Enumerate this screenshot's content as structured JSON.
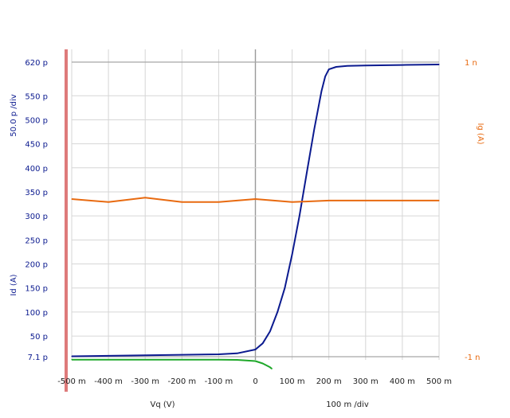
{
  "chart_data": {
    "type": "line",
    "xlabel": "Vq (V)",
    "x_per_div": "100 m /div",
    "ylabel_left": "Id (A)",
    "y_per_div_left": "50.0 p /div",
    "ylabel_right": "Ig (A)",
    "xlim": [
      -0.5,
      0.5
    ],
    "ylim_left": [
      7.1e-12,
      6.2e-10
    ],
    "ylim_right": [
      -1e-09,
      1e-09
    ],
    "x_tick_labels": [
      "-500 m",
      "-400 m",
      "-300 m",
      "-200 m",
      "-100 m",
      "0",
      "100 m",
      "200 m",
      "300 m",
      "400 m",
      "500 m"
    ],
    "x_tick_values": [
      -0.5,
      -0.4,
      -0.3,
      -0.2,
      -0.1,
      0,
      0.1,
      0.2,
      0.3,
      0.4,
      0.5
    ],
    "y_left_tick_labels": [
      "620 p",
      "550 p",
      "500 p",
      "450 p",
      "400 p",
      "350 p",
      "300 p",
      "250 p",
      "200 p",
      "150 p",
      "100 p",
      "50 p",
      "7.1 p"
    ],
    "y_left_tick_values": [
      620,
      550,
      500,
      450,
      400,
      350,
      300,
      250,
      200,
      150,
      100,
      50,
      7.1
    ],
    "y_right_tick_labels": [
      "1 n",
      "-1 n"
    ],
    "y_right_tick_values": [
      1,
      -1
    ],
    "grid": true,
    "series": [
      {
        "axis": "left",
        "color": "#0b1a8f",
        "x": [
          -0.5,
          -0.4,
          -0.3,
          -0.2,
          -0.1,
          -0.05,
          0,
          0.02,
          0.04,
          0.06,
          0.08,
          0.1,
          0.12,
          0.14,
          0.16,
          0.18,
          0.19,
          0.2,
          0.22,
          0.25,
          0.3,
          0.4,
          0.5
        ],
        "y": [
          8,
          9,
          10,
          11,
          12,
          14,
          22,
          35,
          60,
          100,
          150,
          220,
          300,
          390,
          480,
          560,
          590,
          605,
          610,
          612,
          613,
          614,
          615
        ]
      },
      {
        "axis": "left",
        "color": "#1fa82a",
        "x": [
          -0.5,
          -0.4,
          -0.3,
          -0.2,
          -0.1,
          -0.05,
          0,
          0.02,
          0.04,
          0.045
        ],
        "y": [
          1,
          1,
          1,
          1,
          1,
          0.5,
          -2,
          -7,
          -15,
          -18
        ]
      },
      {
        "axis": "right",
        "color": "#e86a10",
        "x": [
          -0.5,
          -0.4,
          -0.3,
          -0.2,
          -0.1,
          0,
          0.1,
          0.2,
          0.3,
          0.4,
          0.5
        ],
        "y": [
          0.07,
          0.05,
          0.08,
          0.05,
          0.05,
          0.07,
          0.05,
          0.06,
          0.06,
          0.06,
          0.06
        ]
      }
    ]
  }
}
